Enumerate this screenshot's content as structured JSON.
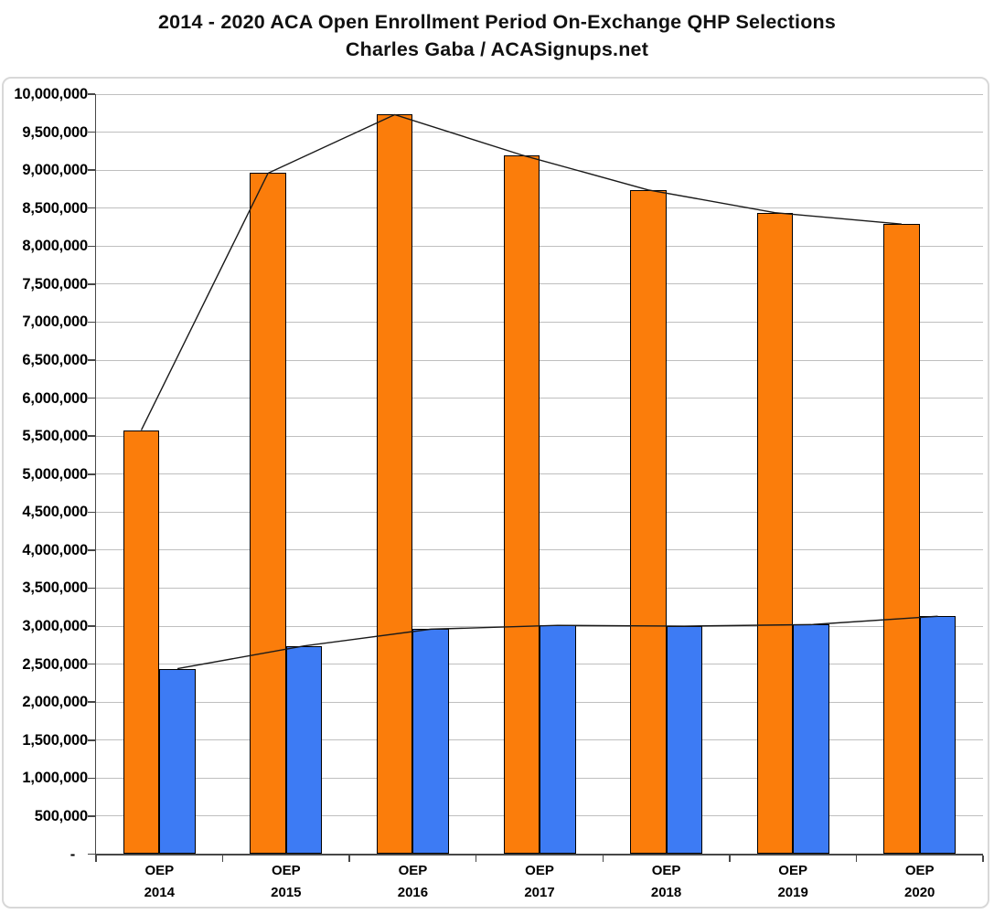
{
  "title": {
    "line1": "2014 - 2020 ACA Open Enrollment Period On-Exchange QHP Selections",
    "line2": "Charles Gaba / ACASignups.net"
  },
  "chart_data": {
    "type": "bar",
    "title": "2014 - 2020 ACA Open Enrollment Period On-Exchange QHP Selections",
    "subtitle": "Charles Gaba / ACASignups.net",
    "categories": [
      "OEP 2014",
      "OEP 2015",
      "OEP 2016",
      "OEP 2017",
      "OEP 2018",
      "OEP 2019",
      "OEP 2020"
    ],
    "categories_two_line": [
      {
        "top": "OEP",
        "bottom": "2014"
      },
      {
        "top": "OEP",
        "bottom": "2015"
      },
      {
        "top": "OEP",
        "bottom": "2016"
      },
      {
        "top": "OEP",
        "bottom": "2017"
      },
      {
        "top": "OEP",
        "bottom": "2018"
      },
      {
        "top": "OEP",
        "bottom": "2019"
      },
      {
        "top": "OEP",
        "bottom": "2020"
      }
    ],
    "series": [
      {
        "name": "orange-bars",
        "color": "#FB7D0B",
        "values": [
          5580000,
          8960000,
          9730000,
          9200000,
          8740000,
          8440000,
          8290000
        ]
      },
      {
        "name": "blue-bars",
        "color": "#3D7BF4",
        "values": [
          2440000,
          2740000,
          2960000,
          3010000,
          3000000,
          3020000,
          3130000
        ]
      }
    ],
    "line_overlay_series": [
      "orange-bars",
      "blue-bars"
    ],
    "line_color": "#1a1a1a",
    "ylim": [
      0,
      10000000
    ],
    "ytick_step": 500000,
    "y_tick_labels": [
      "10,000,000",
      "9,500,000",
      "9,000,000",
      "8,500,000",
      "8,000,000",
      "7,500,000",
      "7,000,000",
      "6,500,000",
      "6,000,000",
      "5,500,000",
      "5,000,000",
      "4,500,000",
      "4,000,000",
      "3,500,000",
      "3,000,000",
      "2,500,000",
      "2,000,000",
      "1,500,000",
      "1,000,000",
      "500,000",
      "-"
    ],
    "grid": true,
    "legend": "none",
    "xlabel": "",
    "ylabel": ""
  },
  "colors": {
    "background": "#FFFFFF",
    "frame_border": "#D8D8D8",
    "gridline": "#BFBFBF",
    "axis": "#474747",
    "bar_border": "#000000",
    "text": "#000000"
  }
}
